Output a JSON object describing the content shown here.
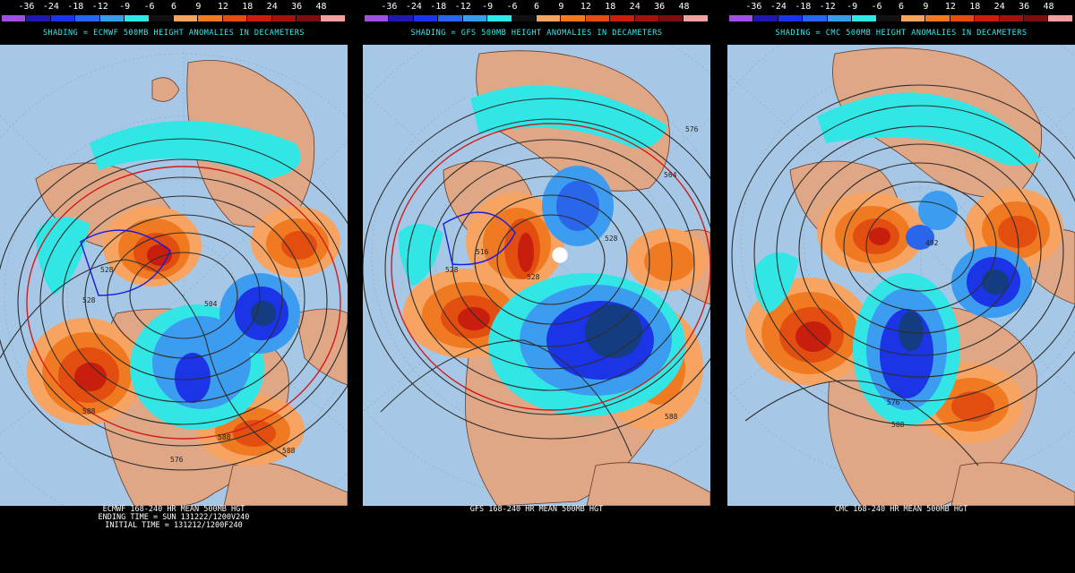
{
  "colorbar": {
    "labels": [
      "-36",
      "-24",
      "-18",
      "-12",
      "-9",
      "-6",
      "6",
      "9",
      "12",
      "18",
      "24",
      "36",
      "48"
    ],
    "colors": [
      "#a04fe0",
      "#2018a8",
      "#1a34e6",
      "#2a66ea",
      "#3c9cf0",
      "#33e6e6",
      "#000000",
      "#f7a462",
      "#f07a22",
      "#e24e10",
      "#c81e0e",
      "#a0120c",
      "#7a0e10",
      "#f5a0a0"
    ]
  },
  "colors": {
    "ocean": "#a6c8e6",
    "land": "#dfa785",
    "contour": "#2e2e2e",
    "warm": [
      "#f7a462",
      "#f07a22",
      "#e24e10",
      "#c81e0e"
    ],
    "cold": [
      "#33e6e6",
      "#3c9cf0",
      "#2a66ea",
      "#1a34e6",
      "#143c80"
    ]
  },
  "panels": [
    {
      "shading_text": "SHADING = ECMWF 500MB HEIGHT ANOMALIES IN DECAMETERS",
      "footer": [
        "ECMWF 168-240 HR MEAN 500MB HGT",
        "ENDING TIME = SUN 131222/1200V240",
        "INITIAL TIME = 131212/1200F240"
      ],
      "contour_labels": [
        {
          "text": "528"
        },
        {
          "text": "528"
        },
        {
          "text": "504"
        },
        {
          "text": "588"
        },
        {
          "text": "588"
        },
        {
          "text": "576"
        },
        {
          "text": "588"
        }
      ]
    },
    {
      "shading_text": "SHADING = GFS 500MB HEIGHT ANOMALIES IN DECAMETERS",
      "footer": [
        "GFS 168-240 HR MEAN 500MB HGT"
      ],
      "contour_labels": [
        {
          "text": "516"
        },
        {
          "text": "528"
        },
        {
          "text": "528"
        },
        {
          "text": "564"
        },
        {
          "text": "576"
        },
        {
          "text": "588"
        },
        {
          "text": "528"
        }
      ]
    },
    {
      "shading_text": "SHADING = CMC 500MB HEIGHT ANOMALIES IN DECAMETERS",
      "footer": [
        "CMC 168-240 HR MEAN 500MB HGT"
      ],
      "contour_labels": [
        {
          "text": "492"
        },
        {
          "text": "588"
        },
        {
          "text": "576"
        }
      ]
    }
  ]
}
